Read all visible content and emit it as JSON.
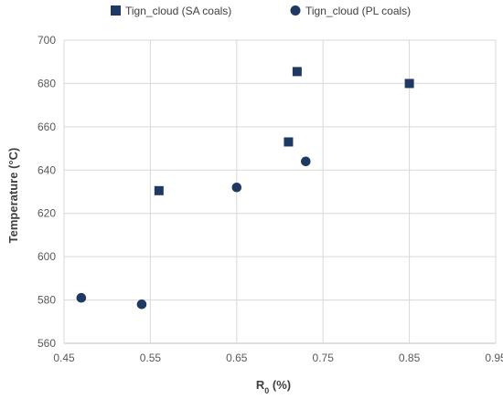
{
  "chart_data": {
    "type": "scatter",
    "title": "",
    "xlabel": "R",
    "xlabel_sub": "0",
    "xlabel_unit": " (%)",
    "ylabel": "Temperature (°C)",
    "xlim": [
      0.45,
      0.95
    ],
    "ylim": [
      560,
      700
    ],
    "xticks": [
      0.45,
      0.55,
      0.65,
      0.75,
      0.85,
      0.95
    ],
    "xtick_labels": [
      "0.45",
      "0.55",
      "0.65",
      "0.75",
      "0.85",
      "0.95"
    ],
    "yticks": [
      560,
      580,
      600,
      620,
      640,
      660,
      680,
      700
    ],
    "ytick_labels": [
      "560",
      "580",
      "600",
      "620",
      "640",
      "660",
      "680",
      "700"
    ],
    "grid": true,
    "legend_position": "top",
    "series": [
      {
        "name": "Tign_cloud (SA coals)",
        "marker": "square",
        "color": "#203864",
        "points": [
          {
            "x": 0.56,
            "y": 630.5
          },
          {
            "x": 0.71,
            "y": 653
          },
          {
            "x": 0.72,
            "y": 685.5
          },
          {
            "x": 0.85,
            "y": 680
          }
        ]
      },
      {
        "name": "Tign_cloud (PL coals)",
        "marker": "circle",
        "color": "#203864",
        "points": [
          {
            "x": 0.47,
            "y": 581
          },
          {
            "x": 0.54,
            "y": 578
          },
          {
            "x": 0.65,
            "y": 632
          },
          {
            "x": 0.73,
            "y": 644
          }
        ]
      }
    ]
  }
}
